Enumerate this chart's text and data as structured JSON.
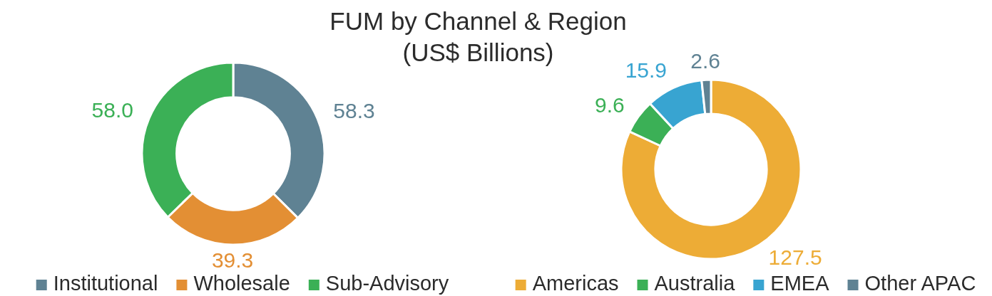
{
  "chart_data": [
    {
      "type": "donut",
      "title": "FUM by Channel & Region",
      "subtitle": "(US$ Billions)",
      "categories": [
        "Institutional",
        "Wholesale",
        "Sub-Advisory"
      ],
      "values": [
        58.3,
        39.3,
        58.0
      ],
      "colors": [
        "#5f8293",
        "#e38f34",
        "#3bb056"
      ],
      "value_labels": [
        "58.3",
        "39.3",
        "58.0"
      ],
      "legend": "bottom"
    },
    {
      "type": "donut",
      "categories": [
        "Americas",
        "Australia",
        "EMEA",
        "Other APAC"
      ],
      "values": [
        127.5,
        9.6,
        15.9,
        2.6
      ],
      "colors": [
        "#edac36",
        "#3bb056",
        "#38a4d1",
        "#5f8293"
      ],
      "value_labels": [
        "127.5",
        "9.6",
        "15.9",
        "2.6"
      ],
      "legend": "bottom"
    }
  ]
}
